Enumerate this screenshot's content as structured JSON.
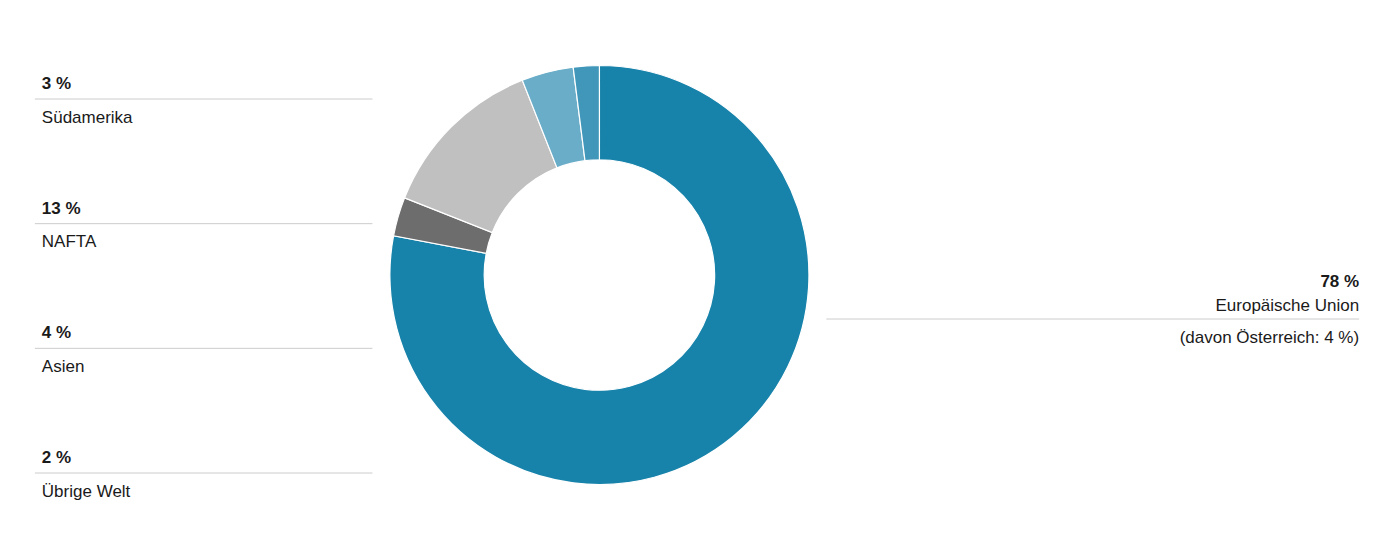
{
  "chart_data": {
    "type": "pie",
    "categories": [
      "Europäische Union",
      "Südamerika",
      "NAFTA",
      "Asien",
      "Übrige Welt"
    ],
    "values": [
      78,
      3,
      13,
      4,
      2
    ],
    "value_labels": [
      "78 %",
      "3 %",
      "13 %",
      "4 %",
      "2 %"
    ],
    "colors": [
      "#1782aa",
      "#6d6d6d",
      "#c0c0c0",
      "#6aadc8",
      "#4097ba"
    ],
    "annotations": [
      "(davon Österreich: 4 %)"
    ],
    "data_labels": true
  }
}
